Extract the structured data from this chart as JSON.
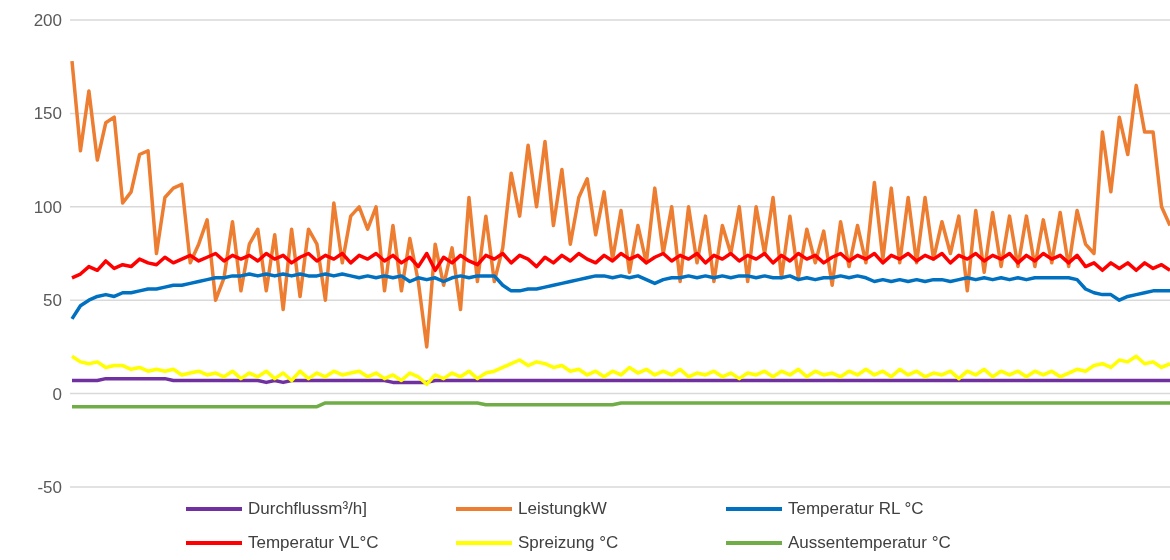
{
  "chart_data": {
    "type": "line",
    "categories": [
      null,
      null,
      null,
      null,
      null,
      null,
      null,
      null,
      null,
      null,
      null,
      null,
      null,
      null,
      null,
      null,
      null,
      null,
      null,
      null,
      null,
      null,
      null,
      null,
      null,
      null,
      null,
      null,
      null,
      null,
      null,
      null,
      null,
      null,
      null,
      null,
      null,
      null,
      null,
      null,
      null,
      null,
      null,
      null,
      null,
      null,
      null,
      null,
      null,
      null,
      null,
      null,
      null,
      null,
      null,
      null,
      null,
      null,
      null,
      null,
      null,
      null,
      null,
      null,
      null,
      null,
      null,
      null,
      null,
      null,
      null,
      null,
      null,
      null,
      null,
      null,
      null,
      null,
      null,
      null,
      null,
      null,
      null,
      null,
      null,
      null,
      null,
      null,
      null,
      null,
      null,
      null,
      null,
      null,
      null,
      null,
      null,
      null,
      null,
      null,
      null,
      null,
      null,
      null,
      null,
      null,
      null,
      null,
      null,
      null,
      null,
      null,
      null,
      null,
      null,
      null,
      null,
      null,
      null,
      null,
      null,
      null,
      null,
      null,
      null,
      null,
      null,
      null,
      null,
      null,
      null
    ],
    "series": [
      {
        "name": "Durchflussm³/h]",
        "color": "#7030a0",
        "values": [
          7,
          7,
          7,
          7,
          8,
          8,
          8,
          8,
          8,
          8,
          8,
          8,
          7,
          7,
          7,
          7,
          7,
          7,
          7,
          7,
          7,
          7,
          7,
          6,
          7,
          6,
          7,
          7,
          7,
          7,
          7,
          7,
          7,
          7,
          7,
          7,
          7,
          7,
          6,
          6,
          6,
          6,
          6,
          7,
          7,
          7,
          7,
          7,
          7,
          7,
          7,
          7,
          7,
          7,
          7,
          7,
          7,
          7,
          7,
          7,
          7,
          7,
          7,
          7,
          7,
          7,
          7,
          7,
          7,
          7,
          7,
          7,
          7,
          7,
          7,
          7,
          7,
          7,
          7,
          7,
          7,
          7,
          7,
          7,
          7,
          7,
          7,
          7,
          7,
          7,
          7,
          7,
          7,
          7,
          7,
          7,
          7,
          7,
          7,
          7,
          7,
          7,
          7,
          7,
          7,
          7,
          7,
          7,
          7,
          7,
          7,
          7,
          7,
          7,
          7,
          7,
          7,
          7,
          7,
          7,
          7,
          7,
          7,
          7,
          7,
          7,
          7,
          7,
          7,
          7,
          7
        ]
      },
      {
        "name": "LeistungkW",
        "color": "#ed7d31",
        "values": [
          178,
          130,
          162,
          125,
          145,
          148,
          102,
          108,
          128,
          130,
          75,
          105,
          110,
          112,
          70,
          80,
          93,
          50,
          62,
          92,
          55,
          80,
          88,
          55,
          85,
          45,
          88,
          52,
          88,
          80,
          50,
          102,
          70,
          95,
          100,
          88,
          100,
          55,
          90,
          55,
          83,
          60,
          25,
          80,
          58,
          78,
          45,
          105,
          60,
          95,
          60,
          78,
          118,
          95,
          133,
          100,
          135,
          90,
          120,
          80,
          105,
          115,
          85,
          108,
          72,
          98,
          65,
          90,
          70,
          110,
          75,
          100,
          60,
          100,
          70,
          95,
          60,
          90,
          75,
          100,
          60,
          100,
          75,
          105,
          62,
          95,
          62,
          88,
          70,
          87,
          58,
          92,
          68,
          90,
          70,
          113,
          72,
          110,
          70,
          105,
          70,
          105,
          72,
          92,
          75,
          95,
          55,
          98,
          65,
          97,
          68,
          95,
          68,
          95,
          68,
          93,
          70,
          97,
          68,
          98,
          80,
          75,
          140,
          108,
          148,
          128,
          165,
          140,
          140,
          100,
          90
        ]
      },
      {
        "name": "Temperatur RL °C",
        "color": "#0070c0",
        "values": [
          40,
          47,
          50,
          52,
          53,
          52,
          54,
          54,
          55,
          56,
          56,
          57,
          58,
          58,
          59,
          60,
          61,
          62,
          62,
          63,
          63,
          64,
          63,
          64,
          63,
          64,
          63,
          64,
          63,
          63,
          64,
          63,
          64,
          63,
          62,
          63,
          62,
          63,
          62,
          63,
          60,
          62,
          61,
          62,
          60,
          62,
          63,
          62,
          63,
          63,
          63,
          58,
          55,
          55,
          56,
          56,
          57,
          58,
          59,
          60,
          61,
          62,
          63,
          63,
          62,
          63,
          62,
          63,
          61,
          59,
          61,
          62,
          62,
          63,
          62,
          63,
          62,
          63,
          62,
          63,
          63,
          62,
          63,
          62,
          62,
          63,
          61,
          62,
          61,
          62,
          62,
          63,
          62,
          63,
          62,
          60,
          61,
          60,
          61,
          60,
          61,
          60,
          61,
          61,
          60,
          61,
          62,
          61,
          62,
          61,
          62,
          61,
          62,
          61,
          62,
          62,
          62,
          62,
          62,
          61,
          56,
          54,
          53,
          53,
          50,
          52,
          53,
          54,
          55,
          55,
          55
        ]
      },
      {
        "name": "Temperatur VL°C",
        "color": "#ff0000",
        "values": [
          62,
          64,
          68,
          66,
          71,
          67,
          69,
          68,
          72,
          70,
          69,
          73,
          70,
          72,
          74,
          71,
          73,
          75,
          71,
          74,
          72,
          74,
          71,
          75,
          72,
          74,
          70,
          73,
          75,
          71,
          74,
          72,
          75,
          70,
          74,
          72,
          75,
          71,
          74,
          70,
          73,
          68,
          75,
          66,
          73,
          70,
          74,
          71,
          69,
          74,
          72,
          75,
          70,
          74,
          72,
          68,
          73,
          70,
          74,
          71,
          75,
          72,
          70,
          74,
          71,
          75,
          72,
          74,
          70,
          73,
          75,
          71,
          74,
          72,
          75,
          70,
          74,
          72,
          75,
          71,
          74,
          72,
          75,
          70,
          74,
          71,
          75,
          72,
          74,
          70,
          73,
          75,
          71,
          74,
          72,
          75,
          70,
          74,
          72,
          75,
          71,
          74,
          72,
          75,
          70,
          74,
          72,
          75,
          71,
          74,
          72,
          75,
          70,
          74,
          71,
          75,
          72,
          74,
          70,
          74,
          68,
          70,
          66,
          70,
          67,
          70,
          66,
          70,
          67,
          69,
          66
        ]
      },
      {
        "name": "Spreizung °C",
        "color": "#ffff00",
        "values": [
          20,
          17,
          16,
          17,
          14,
          15,
          15,
          13,
          14,
          12,
          13,
          12,
          13,
          10,
          11,
          12,
          10,
          11,
          9,
          12,
          8,
          11,
          9,
          12,
          8,
          11,
          7,
          12,
          8,
          11,
          9,
          12,
          10,
          11,
          12,
          9,
          11,
          8,
          10,
          7,
          11,
          9,
          5,
          10,
          8,
          11,
          9,
          12,
          8,
          11,
          12,
          14,
          16,
          18,
          15,
          17,
          16,
          14,
          15,
          12,
          13,
          10,
          12,
          9,
          12,
          10,
          14,
          11,
          13,
          10,
          12,
          10,
          13,
          9,
          11,
          10,
          12,
          9,
          11,
          8,
          11,
          10,
          12,
          9,
          12,
          10,
          13,
          9,
          12,
          10,
          11,
          9,
          12,
          10,
          13,
          10,
          12,
          9,
          13,
          10,
          12,
          9,
          11,
          10,
          12,
          8,
          12,
          10,
          13,
          9,
          12,
          10,
          12,
          9,
          12,
          10,
          12,
          9,
          11,
          13,
          12,
          15,
          16,
          14,
          18,
          17,
          20,
          16,
          17,
          14,
          16
        ]
      },
      {
        "name": "Aussentemperatur °C",
        "color": "#70ad47",
        "values": [
          -7,
          -7,
          -7,
          -7,
          -7,
          -7,
          -7,
          -7,
          -7,
          -7,
          -7,
          -7,
          -7,
          -7,
          -7,
          -7,
          -7,
          -7,
          -7,
          -7,
          -7,
          -7,
          -7,
          -7,
          -7,
          -7,
          -7,
          -7,
          -7,
          -7,
          -5,
          -5,
          -5,
          -5,
          -5,
          -5,
          -5,
          -5,
          -5,
          -5,
          -5,
          -5,
          -5,
          -5,
          -5,
          -5,
          -5,
          -5,
          -5,
          -6,
          -6,
          -6,
          -6,
          -6,
          -6,
          -6,
          -6,
          -6,
          -6,
          -6,
          -6,
          -6,
          -6,
          -6,
          -6,
          -5,
          -5,
          -5,
          -5,
          -5,
          -5,
          -5,
          -5,
          -5,
          -5,
          -5,
          -5,
          -5,
          -5,
          -5,
          -5,
          -5,
          -5,
          -5,
          -5,
          -5,
          -5,
          -5,
          -5,
          -5,
          -5,
          -5,
          -5,
          -5,
          -5,
          -5,
          -5,
          -5,
          -5,
          -5,
          -5,
          -5,
          -5,
          -5,
          -5,
          -5,
          -5,
          -5,
          -5,
          -5,
          -5,
          -5,
          -5,
          -5,
          -5,
          -5,
          -5,
          -5,
          -5,
          -5,
          -5,
          -5,
          -5,
          -5,
          -5,
          -5,
          -5,
          -5,
          -5,
          -5,
          -5
        ]
      }
    ],
    "ylim": [
      -50,
      200
    ],
    "yticks": [
      -50,
      0,
      50,
      100,
      150,
      200
    ],
    "grid": "y",
    "legend": "bottom",
    "tick_labels": "y",
    "marker": "none",
    "line_style": "solid"
  }
}
